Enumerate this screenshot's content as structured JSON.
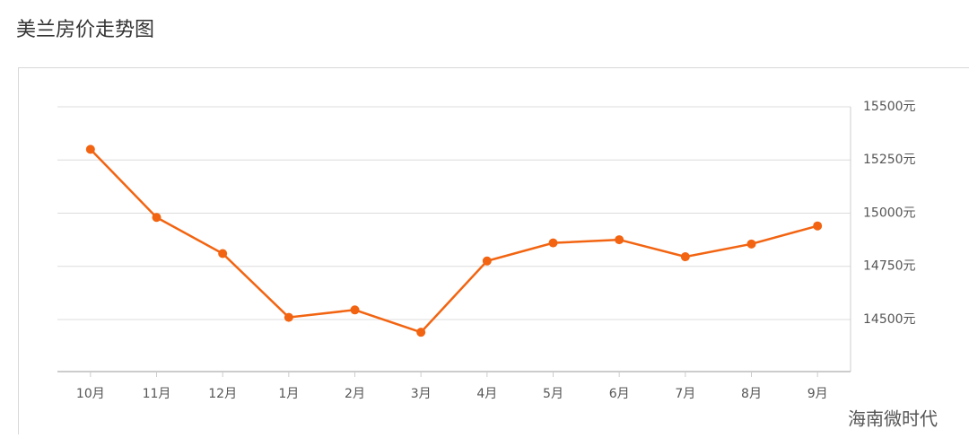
{
  "chart_data": {
    "type": "line",
    "title": "美兰房价走势图",
    "categories": [
      "10月",
      "11月",
      "12月",
      "1月",
      "2月",
      "3月",
      "4月",
      "5月",
      "6月",
      "7月",
      "8月",
      "9月"
    ],
    "series": [
      {
        "color": "#f26411",
        "values": [
          15300,
          14980,
          14810,
          14510,
          14545,
          14440,
          14775,
          14860,
          14875,
          14795,
          14855,
          14940
        ]
      }
    ],
    "ylim": [
      14255,
      15500
    ],
    "yticks": [
      {
        "value": 14500,
        "label": "14500元"
      },
      {
        "value": 14750,
        "label": "14750元"
      },
      {
        "value": 15000,
        "label": "15000元"
      },
      {
        "value": 15250,
        "label": "15250元"
      },
      {
        "value": 15500,
        "label": "15500元"
      }
    ],
    "y_axis_side": "right",
    "grid": true
  },
  "watermark": "海南微时代"
}
